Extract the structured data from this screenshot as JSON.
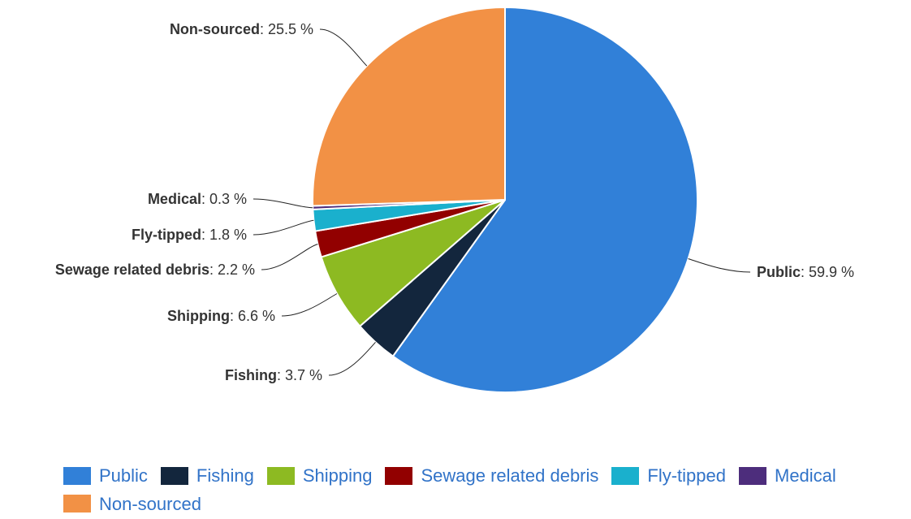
{
  "chart_data": {
    "type": "pie",
    "title": "",
    "slices": [
      {
        "name": "Public",
        "value": 59.9,
        "color": "#3180d8"
      },
      {
        "name": "Fishing",
        "value": 3.7,
        "color": "#13263d"
      },
      {
        "name": "Shipping",
        "value": 6.6,
        "color": "#8dba22"
      },
      {
        "name": "Sewage related debris",
        "value": 2.2,
        "color": "#920000"
      },
      {
        "name": "Fly-tipped",
        "value": 1.8,
        "color": "#1ab0cd"
      },
      {
        "name": "Medical",
        "value": 0.3,
        "color": "#4d2d7c"
      },
      {
        "name": "Non-sourced",
        "value": 25.5,
        "color": "#f29145"
      }
    ],
    "value_suffix": " %",
    "data_labels": true,
    "legend_placement": "bottom"
  }
}
